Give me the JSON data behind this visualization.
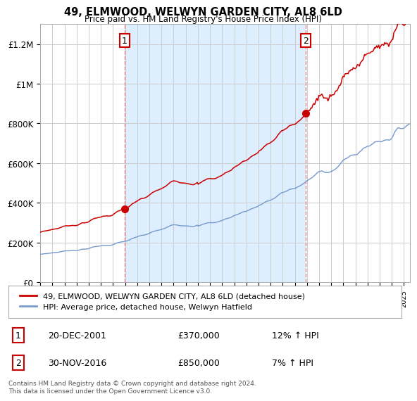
{
  "title": "49, ELMWOOD, WELWYN GARDEN CITY, AL8 6LD",
  "subtitle": "Price paid vs. HM Land Registry's House Price Index (HPI)",
  "ylabel_ticks": [
    "£0",
    "£200K",
    "£400K",
    "£600K",
    "£800K",
    "£1M",
    "£1.2M"
  ],
  "ytick_vals": [
    0,
    200000,
    400000,
    600000,
    800000,
    1000000,
    1200000
  ],
  "ylim": [
    0,
    1300000
  ],
  "xlim_start": 1995.0,
  "xlim_end": 2025.5,
  "sale1_x": 2001.97,
  "sale1_y": 370000,
  "sale1_label": "1",
  "sale2_x": 2016.92,
  "sale2_y": 850000,
  "sale2_label": "2",
  "annotation1_date": "20-DEC-2001",
  "annotation1_price": "£370,000",
  "annotation1_hpi": "12% ↑ HPI",
  "annotation2_date": "30-NOV-2016",
  "annotation2_price": "£850,000",
  "annotation2_hpi": "7% ↑ HPI",
  "legend_line1": "49, ELMWOOD, WELWYN GARDEN CITY, AL8 6LD (detached house)",
  "legend_line2": "HPI: Average price, detached house, Welwyn Hatfield",
  "footer": "Contains HM Land Registry data © Crown copyright and database right 2024.\nThis data is licensed under the Open Government Licence v3.0.",
  "line_red_color": "#cc0000",
  "line_blue_color": "#7799cc",
  "shade_color": "#ddeeff",
  "bg_color": "#ffffff",
  "grid_color": "#cccccc",
  "vline_color": "#ee8888"
}
